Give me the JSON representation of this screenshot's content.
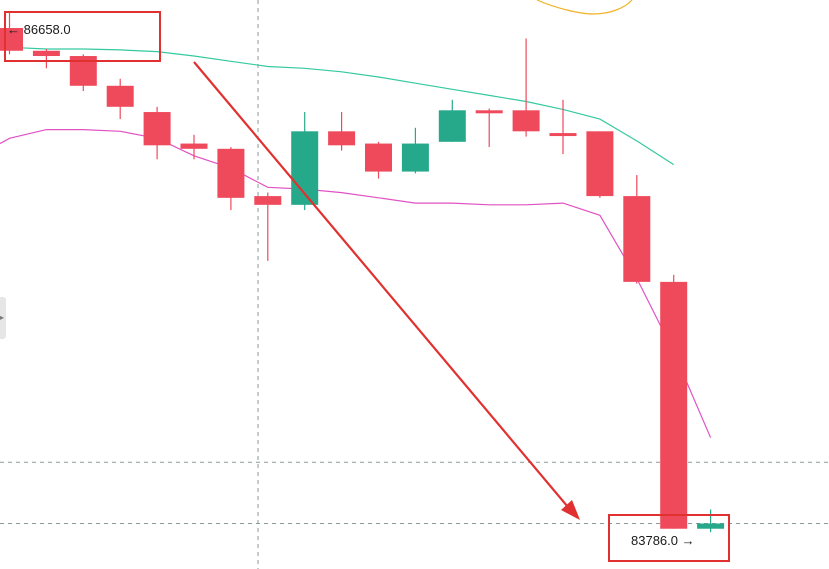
{
  "chart_data": {
    "type": "candlestick",
    "high_label": {
      "text": "86658.0",
      "arrow": "←"
    },
    "low_label": {
      "text": "83786.0",
      "arrow": "→"
    },
    "colors": {
      "up": "#26a98b",
      "down": "#ef4a5c",
      "ma_fast": "#e052c4",
      "ma_slow": "#35c9a0",
      "annotation": "#e0302f",
      "overlay_line": "#f0b429",
      "grid": "#8a9a9a"
    },
    "y_range": [
      83560,
      86810
    ],
    "candles": [
      {
        "open": 86650,
        "close": 86520,
        "high": 86740,
        "low": 86500
      },
      {
        "open": 86520,
        "close": 86490,
        "high": 86530,
        "low": 86420
      },
      {
        "open": 86490,
        "close": 86320,
        "high": 86500,
        "low": 86290
      },
      {
        "open": 86320,
        "close": 86200,
        "high": 86360,
        "low": 86130
      },
      {
        "open": 86170,
        "close": 85980,
        "high": 86200,
        "low": 85900
      },
      {
        "open": 85990,
        "close": 85960,
        "high": 86040,
        "low": 85900
      },
      {
        "open": 85960,
        "close": 85680,
        "high": 85970,
        "low": 85610
      },
      {
        "open": 85690,
        "close": 85640,
        "high": 85710,
        "low": 85320
      },
      {
        "open": 85640,
        "close": 86060,
        "high": 86170,
        "low": 85610
      },
      {
        "open": 86060,
        "close": 85980,
        "high": 86170,
        "low": 85950
      },
      {
        "open": 85990,
        "close": 85830,
        "high": 86000,
        "low": 85790
      },
      {
        "open": 85830,
        "close": 85990,
        "high": 86080,
        "low": 85820
      },
      {
        "open": 86000,
        "close": 86180,
        "high": 86240,
        "low": 86000
      },
      {
        "open": 86180,
        "close": 86180,
        "high": 86190,
        "low": 85970
      },
      {
        "open": 86180,
        "close": 86060,
        "high": 86590,
        "low": 86030
      },
      {
        "open": 86050,
        "close": 86050,
        "high": 86240,
        "low": 85930
      },
      {
        "open": 86060,
        "close": 85690,
        "high": 86060,
        "low": 85680
      },
      {
        "open": 85690,
        "close": 85200,
        "high": 85810,
        "low": 85190
      },
      {
        "open": 85200,
        "close": 83790,
        "high": 85240,
        "low": 83790
      },
      {
        "open": 83790,
        "close": 83820,
        "high": 83900,
        "low": 83770
      }
    ],
    "ma_slow": [
      86540,
      86530,
      86530,
      86525,
      86515,
      86490,
      86460,
      86430,
      86420,
      86400,
      86370,
      86335,
      86300,
      86265,
      86230,
      86185,
      86130,
      86005,
      85870
    ],
    "ma_fast": [
      86020,
      86070,
      86070,
      86060,
      86020,
      85920,
      85850,
      85740,
      85730,
      85710,
      85680,
      85650,
      85650,
      85640,
      85640,
      85650,
      85580,
      85220,
      84800,
      84310
    ],
    "ref_lines": [
      84170,
      83820
    ]
  }
}
